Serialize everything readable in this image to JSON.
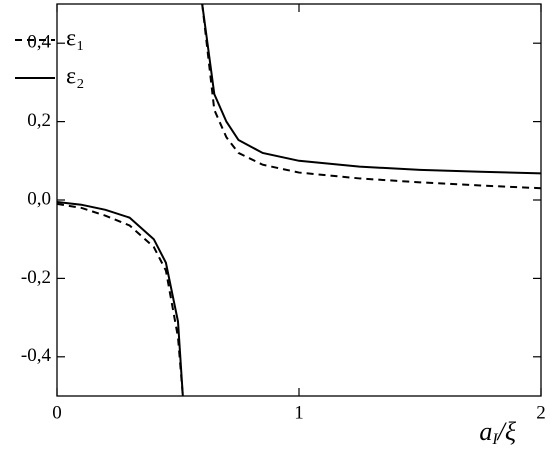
{
  "chart_data": {
    "type": "line",
    "xlabel": {
      "main": "a",
      "sub": "I",
      "rest": "/ξ"
    },
    "x": [
      0,
      0.1,
      0.2,
      0.3,
      0.4,
      0.45,
      0.5,
      0.52,
      0.56,
      0.6,
      0.65,
      0.7,
      0.75,
      0.85,
      1,
      1.25,
      1.5,
      1.75,
      2
    ],
    "series": [
      {
        "name": "ε₁",
        "color": "#000000",
        "dash": true,
        "values": [
          -0.01,
          -0.02,
          -0.04,
          -0.065,
          -0.12,
          -0.18,
          -0.35,
          -0.5,
          null,
          0.5,
          0.23,
          0.16,
          0.12,
          0.09,
          0.07,
          0.055,
          0.045,
          0.037,
          0.03
        ]
      },
      {
        "name": "ε₂",
        "color": "#000000",
        "dash": false,
        "values": [
          -0.005,
          -0.012,
          -0.025,
          -0.045,
          -0.1,
          -0.16,
          -0.31,
          -0.5,
          null,
          0.5,
          0.27,
          0.2,
          0.153,
          0.12,
          0.1,
          0.085,
          0.077,
          0.072,
          0.068
        ]
      }
    ],
    "xlim": [
      0,
      2
    ],
    "xticks": [
      0,
      1,
      2
    ],
    "ylim": [
      -0.5,
      0.5
    ],
    "yticks": [
      {
        "value": -0.4,
        "label": "-0,4"
      },
      {
        "value": -0.2,
        "label": "-0,2"
      },
      {
        "value": 0,
        "label": "0,0"
      },
      {
        "value": 0.2,
        "label": "0,2"
      },
      {
        "value": 0.4,
        "label": "0,4"
      }
    ],
    "legend": "top-left"
  }
}
